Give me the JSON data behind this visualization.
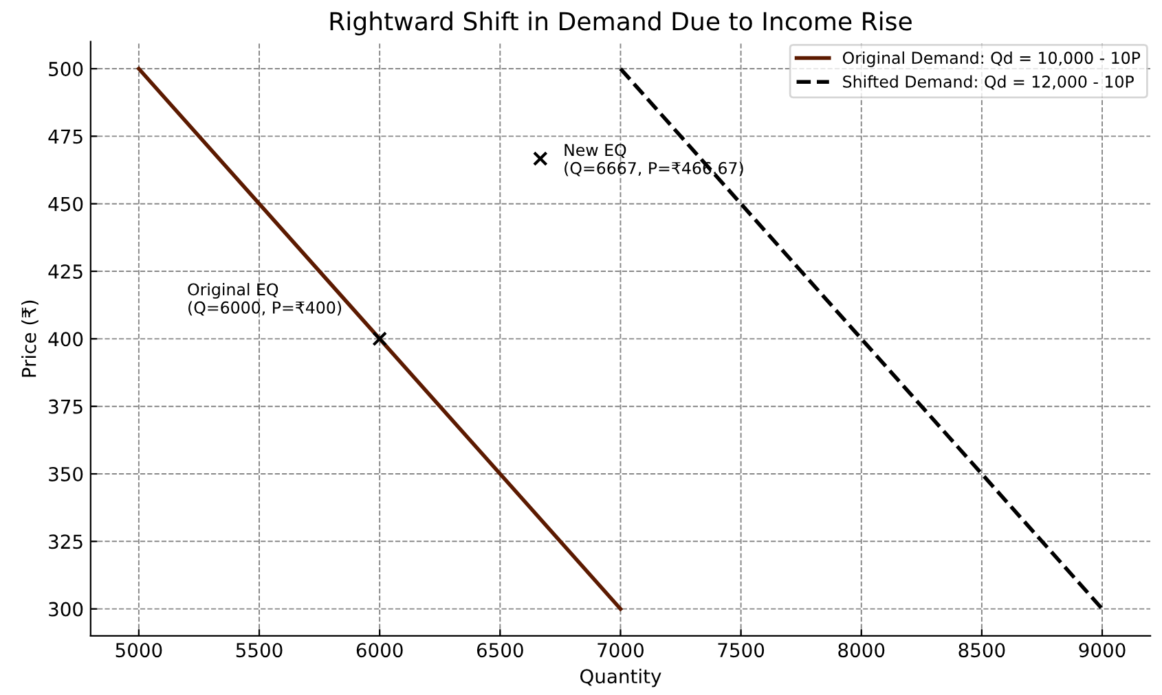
{
  "chart_data": {
    "type": "line",
    "title": "Rightward Shift in Demand Due to Income Rise",
    "xlabel": "Quantity",
    "ylabel": "Price (₹)",
    "series": [
      {
        "name": "Original Demand: Qd = 10,000 - 10P",
        "color": "#5c1a00",
        "x": [
          5000,
          7000
        ],
        "values": [
          500,
          300
        ],
        "line_style": "solid"
      },
      {
        "name": "Shifted Demand: Qd = 12,000 - 10P",
        "color": "#000000",
        "x": [
          7000,
          9000
        ],
        "values": [
          500,
          300
        ],
        "line_style": "dashed"
      },
      {
        "type": "scatter",
        "color": "#000000",
        "x": [
          6000,
          6667
        ],
        "values": [
          400,
          466.7
        ],
        "marker": "cross"
      }
    ],
    "annotations": [
      "Original EQ\n(Q=6000, P=₹400)",
      {
        "text": "New EQ\n(Q=6667, P=₹466.67)",
        "x": 6667,
        "y": 466.67
      }
    ],
    "xlim": [
      4800,
      9200
    ],
    "ylim": [
      290,
      510
    ],
    "xticks": [
      5000,
      5500,
      6000,
      6500,
      7000,
      7500,
      8000,
      8500,
      9000
    ],
    "yticks": [
      300,
      325,
      350,
      375,
      400,
      425,
      450,
      475,
      500
    ],
    "grid": true,
    "legend": "top right"
  }
}
